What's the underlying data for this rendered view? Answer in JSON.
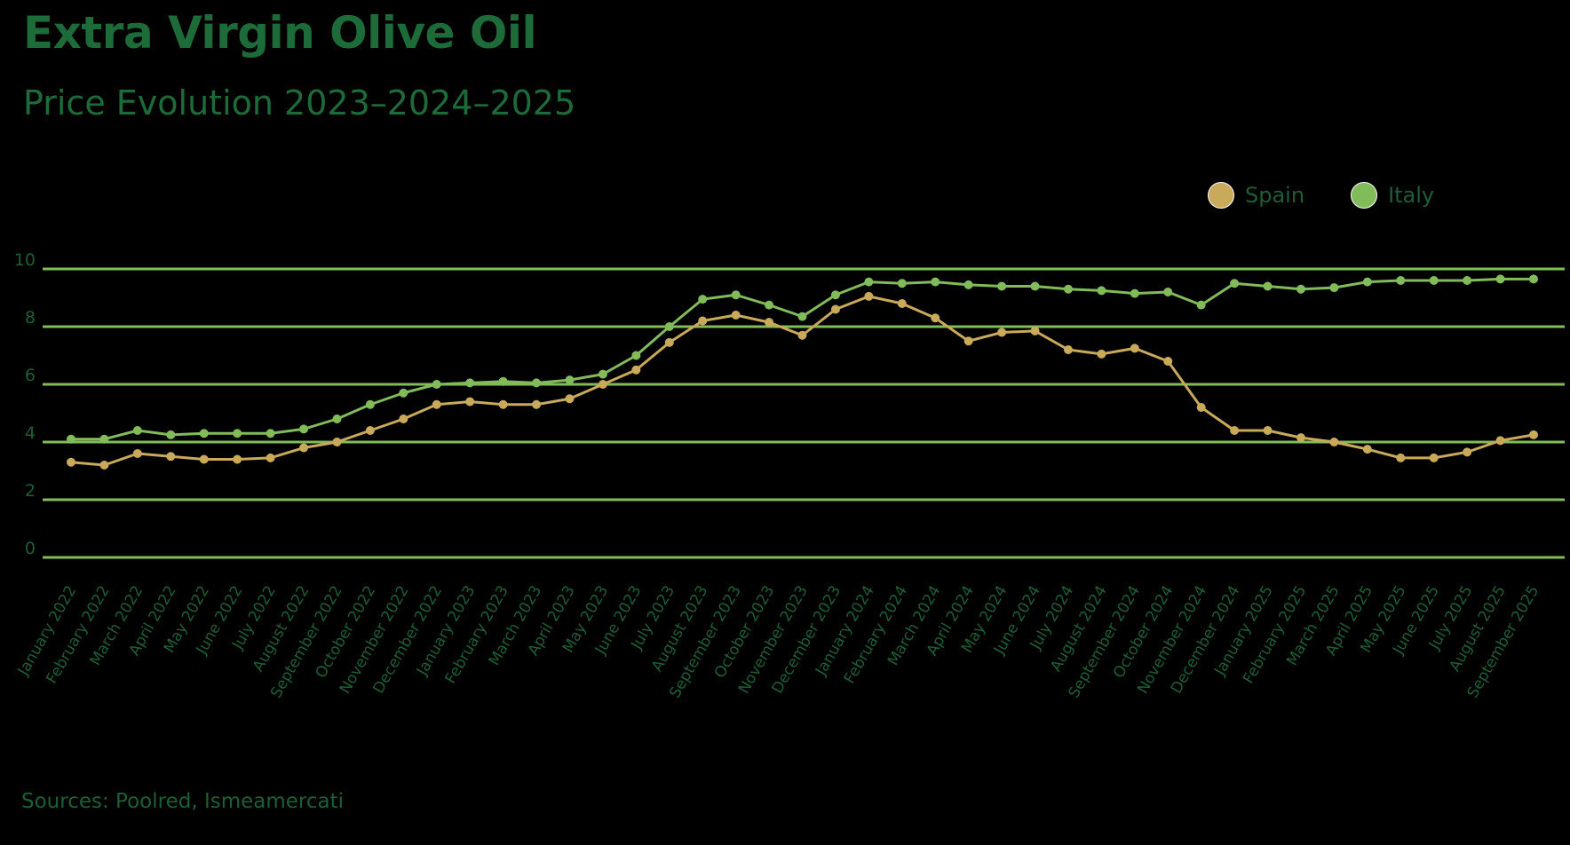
{
  "header": {
    "title": "Extra Virgin Olive Oil",
    "subtitle": "Price Evolution 2023–2024–2025"
  },
  "legend": [
    {
      "label": "Spain",
      "color": "#c9a95a"
    },
    {
      "label": "Italy",
      "color": "#82bb5a"
    }
  ],
  "footer": {
    "sources": "Sources: Poolred, Ismeamercati"
  },
  "colors": {
    "title": "#1e6b3a",
    "gridline": "#82bb5a",
    "spain": "#c9a95a",
    "italy": "#82bb5a",
    "tick_text": "#1e5e36"
  },
  "chart_data": {
    "type": "line",
    "title": "Extra Virgin Olive Oil",
    "subtitle": "Price Evolution 2023–2024–2025",
    "xlabel": "",
    "ylabel": "",
    "ylim": [
      0,
      10
    ],
    "yticks": [
      0,
      2,
      4,
      6,
      8,
      10
    ],
    "grid": true,
    "legend_position": "top-right",
    "categories": [
      "January 2022",
      "February 2022",
      "March 2022",
      "April 2022",
      "May 2022",
      "June 2022",
      "July 2022",
      "August 2022",
      "September 2022",
      "October 2022",
      "November 2022",
      "December 2022",
      "January 2023",
      "February 2023",
      "March 2023",
      "April 2023",
      "May 2023",
      "June 2023",
      "July 2023",
      "August 2023",
      "September 2023",
      "October 2023",
      "November 2023",
      "December 2023",
      "January 2024",
      "February 2024",
      "March 2024",
      "April 2024",
      "May 2024",
      "June 2024",
      "July 2024",
      "August 2024",
      "September 2024",
      "October 2024",
      "November 2024",
      "December 2024",
      "January 2025",
      "February 2025",
      "March 2025",
      "April 2025",
      "May 2025",
      "June 2025",
      "July 2025",
      "August 2025",
      "September 2025"
    ],
    "series": [
      {
        "name": "Spain",
        "color": "#c9a95a",
        "values": [
          3.3,
          3.2,
          3.6,
          3.5,
          3.4,
          3.4,
          3.45,
          3.8,
          4.0,
          4.4,
          4.8,
          5.3,
          5.4,
          5.3,
          5.3,
          5.5,
          6.0,
          6.5,
          7.45,
          8.2,
          8.4,
          8.15,
          7.7,
          8.6,
          9.05,
          8.8,
          8.3,
          7.5,
          7.8,
          7.85,
          7.2,
          7.05,
          7.25,
          6.8,
          5.2,
          4.4,
          4.4,
          4.15,
          4.0,
          3.75,
          3.45,
          3.45,
          3.65,
          4.05,
          4.25
        ]
      },
      {
        "name": "Italy",
        "color": "#82bb5a",
        "values": [
          4.1,
          4.1,
          4.4,
          4.25,
          4.3,
          4.3,
          4.3,
          4.45,
          4.8,
          5.3,
          5.7,
          6.0,
          6.05,
          6.1,
          6.05,
          6.15,
          6.35,
          7.0,
          8.0,
          8.95,
          9.1,
          8.75,
          8.35,
          9.1,
          9.55,
          9.5,
          9.55,
          9.45,
          9.4,
          9.4,
          9.3,
          9.25,
          9.15,
          9.2,
          8.75,
          9.5,
          9.4,
          9.3,
          9.35,
          9.55,
          9.6,
          9.6,
          9.6,
          9.65,
          9.65
        ]
      }
    ]
  }
}
